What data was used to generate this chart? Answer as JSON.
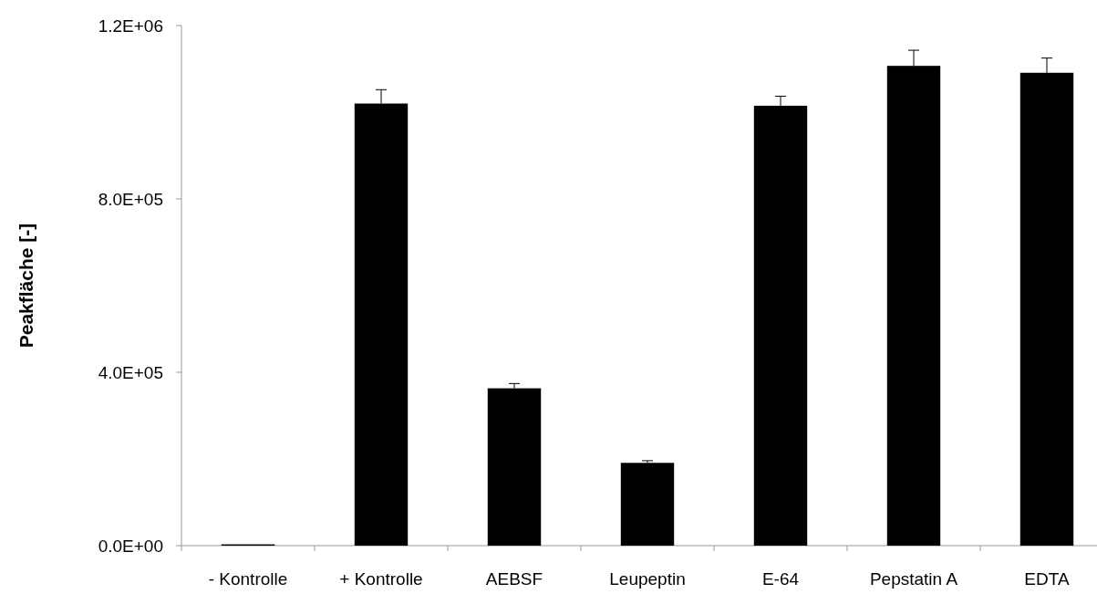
{
  "chart_data": {
    "type": "bar",
    "ylabel": "Peakfläche [-]",
    "categories": [
      "- Kontrolle",
      "+ Kontrolle",
      "AEBSF",
      "Leupeptin",
      "E-64",
      "Pepstatin A",
      "EDTA"
    ],
    "values": [
      3000,
      1020000,
      363000,
      191000,
      1015000,
      1107000,
      1091000
    ],
    "errors": [
      null,
      32000,
      11000,
      5000,
      22000,
      36000,
      34000
    ],
    "color": "#000000",
    "ylim": [
      0,
      1200000
    ],
    "yticks": [
      {
        "value": 0,
        "label": "0.0E+00"
      },
      {
        "value": 400000,
        "label": "4.0E+05"
      },
      {
        "value": 800000,
        "label": "8.0E+05"
      },
      {
        "value": 1200000,
        "label": "1.2E+06"
      }
    ],
    "grid": false
  }
}
